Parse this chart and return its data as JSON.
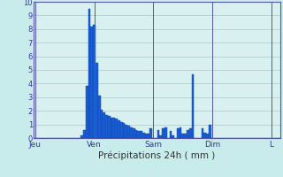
{
  "xlabel": "Précipitations 24h ( mm )",
  "ylim": [
    0,
    10
  ],
  "yticks": [
    0,
    1,
    2,
    3,
    4,
    5,
    6,
    7,
    8,
    9,
    10
  ],
  "background_color": "#c8ecec",
  "plot_bg_color": "#d8f0f0",
  "grid_color": "#a8c8c8",
  "bar_color": "#1a5fd4",
  "bar_edge_color": "#0a40b0",
  "day_labels": [
    "Jeu",
    "Ven",
    "Sam",
    "Dim",
    "L"
  ],
  "day_positions": [
    0,
    24,
    48,
    72,
    96
  ],
  "bar_width": 1.0,
  "values": [
    0,
    0,
    0,
    0,
    0,
    0,
    0,
    0,
    0,
    0,
    0,
    0,
    0,
    0,
    0,
    0,
    0,
    0,
    0,
    0.2,
    0.6,
    3.8,
    9.5,
    8.2,
    8.3,
    5.5,
    3.1,
    2.1,
    1.9,
    1.7,
    1.6,
    1.5,
    1.5,
    1.4,
    1.3,
    1.2,
    1.1,
    1.0,
    0.9,
    0.8,
    0.7,
    0.6,
    0.5,
    0.5,
    0.4,
    0.3,
    0.3,
    0.7,
    0,
    0,
    0.6,
    0.2,
    0.7,
    0.8,
    0,
    0.5,
    0.2,
    0,
    0.7,
    0.8,
    0.3,
    0.3,
    0.6,
    0.7,
    4.7,
    0,
    0,
    0,
    0.7,
    0.4,
    0.3,
    1.0,
    0,
    0,
    0,
    0,
    0,
    0,
    0,
    0,
    0,
    0,
    0,
    0,
    0,
    0,
    0,
    0,
    0,
    0,
    0,
    0,
    0,
    0,
    0,
    0,
    0,
    0,
    0,
    0
  ]
}
